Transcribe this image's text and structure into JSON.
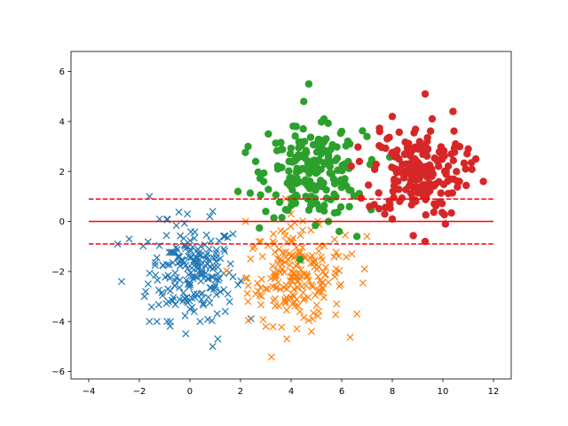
{
  "chart_data": {
    "type": "scatter",
    "title": "",
    "xlabel": "",
    "ylabel": "",
    "xlim": [
      -4.7,
      12.7
    ],
    "ylim": [
      -6.3,
      6.8
    ],
    "grid": false,
    "legend": "none",
    "x_ticks": [
      -4,
      -2,
      0,
      2,
      4,
      6,
      8,
      10,
      12
    ],
    "y_ticks": [
      -6,
      -4,
      -2,
      0,
      2,
      4,
      6
    ],
    "colors": {
      "blue": "#1f77b4",
      "orange": "#ff7f0e",
      "green": "#2ca02c",
      "red": "#d62728"
    },
    "series": [
      {
        "marker": "x",
        "color": "#1f77b4",
        "cluster": {
          "center": [
            0.1,
            -2.0
          ],
          "spread": [
            0.85,
            0.95
          ],
          "count": 200
        },
        "points": [
          [
            -1.6,
            1.0
          ],
          [
            -2.7,
            -2.4
          ],
          [
            -2.4,
            -0.7
          ],
          [
            0.9,
            0.4
          ],
          [
            -1.2,
            0.1
          ],
          [
            -0.9,
            0.1
          ],
          [
            -0.9,
            -4.0
          ],
          [
            0.9,
            -5.0
          ],
          [
            1.1,
            -4.7
          ],
          [
            1.7,
            -0.5
          ],
          [
            1.4,
            -3.6
          ],
          [
            -1.3,
            -4.0
          ],
          [
            -1.6,
            -4.0
          ],
          [
            -1.8,
            -3.0
          ],
          [
            0.0,
            -3.5
          ],
          [
            1.5,
            -2.9
          ],
          [
            -0.1,
            0.3
          ],
          [
            0.4,
            -4.0
          ]
        ]
      },
      {
        "marker": "x",
        "color": "#ff7f0e",
        "cluster": {
          "center": [
            4.2,
            -2.2
          ],
          "spread": [
            0.95,
            0.95
          ],
          "count": 200
        },
        "points": [
          [
            2.2,
            0.0
          ],
          [
            2.4,
            -1.5
          ],
          [
            2.8,
            -0.8
          ],
          [
            3.0,
            -4.2
          ],
          [
            2.3,
            -3.2
          ],
          [
            6.6,
            -3.7
          ],
          [
            6.4,
            -1.3
          ],
          [
            6.9,
            -1.9
          ],
          [
            7.0,
            -0.6
          ],
          [
            4.8,
            -4.4
          ],
          [
            3.3,
            -0.5
          ],
          [
            4.0,
            0.3
          ],
          [
            2.6,
            -2.9
          ],
          [
            5.8,
            -3.3
          ]
        ]
      },
      {
        "marker": "o",
        "color": "#2ca02c",
        "cluster": {
          "center": [
            4.9,
            1.9
          ],
          "spread": [
            0.95,
            0.85
          ],
          "count": 200
        },
        "points": [
          [
            4.7,
            5.5
          ],
          [
            4.5,
            4.8
          ],
          [
            2.3,
            3.0
          ],
          [
            1.9,
            1.2
          ],
          [
            3.0,
            0.4
          ],
          [
            5.9,
            -0.4
          ],
          [
            6.6,
            -0.6
          ],
          [
            3.1,
            3.5
          ],
          [
            6.0,
            3.6
          ],
          [
            7.0,
            3.4
          ],
          [
            4.2,
            3.8
          ],
          [
            5.3,
            4.1
          ],
          [
            2.6,
            2.4
          ]
        ]
      },
      {
        "marker": "o",
        "color": "#d62728",
        "cluster": {
          "center": [
            9.0,
            2.0
          ],
          "spread": [
            0.9,
            0.9
          ],
          "count": 200
        },
        "points": [
          [
            9.3,
            5.1
          ],
          [
            10.4,
            4.4
          ],
          [
            8.0,
            4.2
          ],
          [
            7.5,
            3.6
          ],
          [
            6.7,
            2.4
          ],
          [
            9.3,
            -0.8
          ],
          [
            10.1,
            -0.1
          ],
          [
            11.6,
            1.6
          ],
          [
            11.3,
            2.5
          ],
          [
            8.0,
            0.1
          ],
          [
            7.1,
            0.6
          ],
          [
            10.9,
            2.1
          ],
          [
            10.5,
            3.1
          ]
        ]
      }
    ],
    "lines": [
      {
        "y": 0.0,
        "x_range": [
          -4,
          12
        ],
        "color": "#ff0000",
        "style": "solid"
      },
      {
        "y": 0.9,
        "x_range": [
          -4,
          12
        ],
        "color": "#ff0000",
        "style": "dashed"
      },
      {
        "y": -0.9,
        "x_range": [
          -4,
          12
        ],
        "color": "#ff0000",
        "style": "dashed"
      }
    ]
  }
}
